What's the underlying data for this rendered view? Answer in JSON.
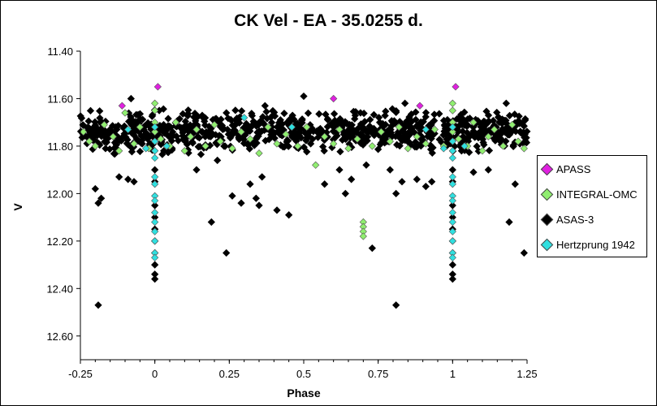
{
  "chart_data": {
    "type": "scatter",
    "title": "CK Vel - EA - 35.0255 d.",
    "xlabel": "Phase",
    "ylabel": "V",
    "xlim": [
      -0.25,
      1.25
    ],
    "ylim": [
      11.4,
      12.7
    ],
    "y_inverted": true,
    "x_ticks": [
      "-0.25",
      "0",
      "0.25",
      "0.5",
      "0.75",
      "1",
      "1.25"
    ],
    "x_tick_values": [
      -0.25,
      0,
      0.25,
      0.5,
      0.75,
      1,
      1.25
    ],
    "y_ticks": [
      "11.40",
      "11.60",
      "11.80",
      "12.00",
      "12.20",
      "12.40",
      "12.60"
    ],
    "y_tick_values": [
      11.4,
      11.6,
      11.8,
      12.0,
      12.2,
      12.4,
      12.6
    ],
    "grid": false,
    "legend_position": "right",
    "series": [
      {
        "name": "APASS",
        "color": "#E020E0",
        "points": [
          [
            -0.11,
            11.63
          ],
          [
            0.01,
            11.55
          ],
          [
            0.6,
            11.6
          ],
          [
            0.89,
            11.63
          ],
          [
            1.01,
            11.55
          ]
        ]
      },
      {
        "name": "INTEGRAL-OMC",
        "color": "#90EE70",
        "points": [
          [
            -0.24,
            11.74
          ],
          [
            -0.22,
            11.78
          ],
          [
            -0.2,
            11.8
          ],
          [
            -0.17,
            11.71
          ],
          [
            -0.14,
            11.76
          ],
          [
            -0.12,
            11.82
          ],
          [
            -0.1,
            11.66
          ],
          [
            -0.07,
            11.79
          ],
          [
            -0.05,
            11.72
          ],
          [
            -0.02,
            11.81
          ],
          [
            0.0,
            11.62
          ],
          [
            0.0,
            11.65
          ],
          [
            0.0,
            11.7
          ],
          [
            0.0,
            11.74
          ],
          [
            0.02,
            11.77
          ],
          [
            0.05,
            11.8
          ],
          [
            0.07,
            11.7
          ],
          [
            0.1,
            11.82
          ],
          [
            0.12,
            11.76
          ],
          [
            0.14,
            11.73
          ],
          [
            0.17,
            11.8
          ],
          [
            0.2,
            11.71
          ],
          [
            0.22,
            11.78
          ],
          [
            0.26,
            11.81
          ],
          [
            0.29,
            11.74
          ],
          [
            0.32,
            11.77
          ],
          [
            0.35,
            11.83
          ],
          [
            0.38,
            11.72
          ],
          [
            0.41,
            11.79
          ],
          [
            0.44,
            11.75
          ],
          [
            0.48,
            11.8
          ],
          [
            0.51,
            11.72
          ],
          [
            0.54,
            11.88
          ],
          [
            0.57,
            11.76
          ],
          [
            0.6,
            11.79
          ],
          [
            0.62,
            11.73
          ],
          [
            0.65,
            11.81
          ],
          [
            0.68,
            11.77
          ],
          [
            0.7,
            12.12
          ],
          [
            0.7,
            12.14
          ],
          [
            0.7,
            12.16
          ],
          [
            0.7,
            12.18
          ],
          [
            0.73,
            11.8
          ],
          [
            0.76,
            11.74
          ],
          [
            0.79,
            11.78
          ],
          [
            0.82,
            11.72
          ],
          [
            0.85,
            11.81
          ],
          [
            0.88,
            11.76
          ],
          [
            0.91,
            11.79
          ],
          [
            0.94,
            11.73
          ],
          [
            0.97,
            11.8
          ],
          [
            1.0,
            11.62
          ],
          [
            1.0,
            11.65
          ],
          [
            1.0,
            11.7
          ],
          [
            1.0,
            11.74
          ],
          [
            1.02,
            11.77
          ],
          [
            1.05,
            11.8
          ],
          [
            1.07,
            11.7
          ],
          [
            1.1,
            11.82
          ],
          [
            1.12,
            11.76
          ],
          [
            1.14,
            11.73
          ],
          [
            1.17,
            11.8
          ],
          [
            1.2,
            11.71
          ],
          [
            1.22,
            11.78
          ],
          [
            1.24,
            11.81
          ]
        ]
      },
      {
        "name": "ASAS-3",
        "color": "#000000",
        "band": {
          "x_min": -0.25,
          "x_max": 1.25,
          "y_min": 11.64,
          "y_max": 11.84,
          "count": 900,
          "seed": 7
        },
        "points": [
          [
            -0.19,
            12.47
          ],
          [
            -0.19,
            12.04
          ],
          [
            -0.2,
            11.98
          ],
          [
            -0.18,
            12.02
          ],
          [
            -0.12,
            11.93
          ],
          [
            -0.09,
            11.94
          ],
          [
            -0.07,
            11.95
          ],
          [
            -0.02,
            11.8
          ],
          [
            0.0,
            12.05
          ],
          [
            0.0,
            12.1
          ],
          [
            0.0,
            12.15
          ],
          [
            0.0,
            12.2
          ],
          [
            0.0,
            12.25
          ],
          [
            0.0,
            12.3
          ],
          [
            0.0,
            12.34
          ],
          [
            0.0,
            12.36
          ],
          [
            0.0,
            11.95
          ],
          [
            0.0,
            11.9
          ],
          [
            0.03,
            11.82
          ],
          [
            0.14,
            11.9
          ],
          [
            0.19,
            12.12
          ],
          [
            0.21,
            11.86
          ],
          [
            0.24,
            12.25
          ],
          [
            0.26,
            12.01
          ],
          [
            0.29,
            12.04
          ],
          [
            0.32,
            11.96
          ],
          [
            0.34,
            12.02
          ],
          [
            0.35,
            12.05
          ],
          [
            0.36,
            11.93
          ],
          [
            0.41,
            12.07
          ],
          [
            0.45,
            12.09
          ],
          [
            0.57,
            11.96
          ],
          [
            0.62,
            11.9
          ],
          [
            0.64,
            12.0
          ],
          [
            0.66,
            11.94
          ],
          [
            0.71,
            11.88
          ],
          [
            0.73,
            12.23
          ],
          [
            0.79,
            11.9
          ],
          [
            0.81,
            12.47
          ],
          [
            0.81,
            12.0
          ],
          [
            0.83,
            11.95
          ],
          [
            0.88,
            11.94
          ],
          [
            0.91,
            11.97
          ],
          [
            0.93,
            11.95
          ],
          [
            0.98,
            11.8
          ],
          [
            1.0,
            12.05
          ],
          [
            1.0,
            12.1
          ],
          [
            1.0,
            12.15
          ],
          [
            1.0,
            12.2
          ],
          [
            1.0,
            12.25
          ],
          [
            1.0,
            12.3
          ],
          [
            1.0,
            12.34
          ],
          [
            1.0,
            12.36
          ],
          [
            1.0,
            11.95
          ],
          [
            1.0,
            11.9
          ],
          [
            1.03,
            11.82
          ],
          [
            1.07,
            11.91
          ],
          [
            1.12,
            11.9
          ],
          [
            1.19,
            12.12
          ],
          [
            1.21,
            11.96
          ],
          [
            1.24,
            12.25
          ],
          [
            0.5,
            11.59
          ],
          [
            -0.08,
            11.6
          ],
          [
            1.18,
            11.62
          ],
          [
            0.84,
            11.62
          ],
          [
            0.37,
            11.63
          ]
        ]
      },
      {
        "name": "Hertzprung 1942",
        "color": "#30E0E0",
        "points": [
          [
            -0.09,
            11.73
          ],
          [
            -0.03,
            11.81
          ],
          [
            0.0,
            11.72
          ],
          [
            0.0,
            11.78
          ],
          [
            0.0,
            11.82
          ],
          [
            0.0,
            11.85
          ],
          [
            0.0,
            11.93
          ],
          [
            0.0,
            11.96
          ],
          [
            0.0,
            12.01
          ],
          [
            0.0,
            12.03
          ],
          [
            0.0,
            12.08
          ],
          [
            0.0,
            12.12
          ],
          [
            0.0,
            12.16
          ],
          [
            0.0,
            12.2
          ],
          [
            0.0,
            12.25
          ],
          [
            0.0,
            12.27
          ],
          [
            0.04,
            11.8
          ],
          [
            0.3,
            11.68
          ],
          [
            0.46,
            11.72
          ],
          [
            0.91,
            11.73
          ],
          [
            0.97,
            11.81
          ],
          [
            1.0,
            11.72
          ],
          [
            1.0,
            11.78
          ],
          [
            1.0,
            11.82
          ],
          [
            1.0,
            11.85
          ],
          [
            1.0,
            11.93
          ],
          [
            1.0,
            11.96
          ],
          [
            1.0,
            12.01
          ],
          [
            1.0,
            12.03
          ],
          [
            1.0,
            12.08
          ],
          [
            1.0,
            12.12
          ],
          [
            1.0,
            12.16
          ],
          [
            1.0,
            12.2
          ],
          [
            1.0,
            12.25
          ],
          [
            1.0,
            12.27
          ],
          [
            1.04,
            11.8
          ]
        ]
      }
    ]
  }
}
